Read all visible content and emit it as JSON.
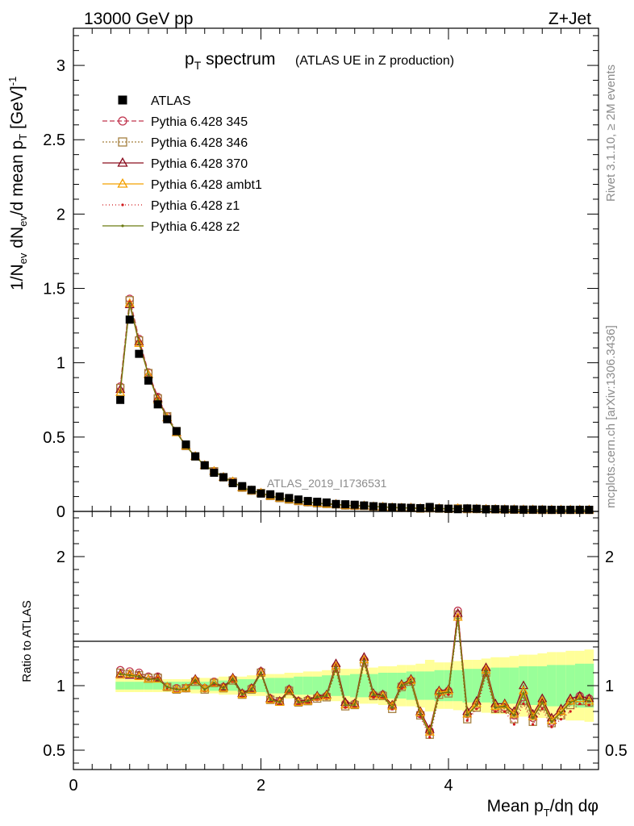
{
  "header": {
    "left": "13000 GeV pp",
    "right": "Z+Jet"
  },
  "side_text": {
    "rivet": "Rivet 3.1.10, ≥ 2M events",
    "mcplots": "mcplots.cern.ch [arXiv:1306.3436]"
  },
  "chart_data": [
    {
      "type": "scatter",
      "panel": "main",
      "title": "p_T spectrum",
      "title_main": "p",
      "title_sub": "T",
      "title_rest": " spectrum",
      "subtitle": "(ATLAS UE in Z production)",
      "watermark": "ATLAS_2019_I1736531",
      "ylabel": "1/N_ev dN_ev/d mean p_T [GeV]^-1",
      "ylabel_parts": {
        "a": "1/N",
        "b": "ev",
        "c": " dN",
        "d": "ev",
        "e": "/d mean p",
        "f": "T",
        "g": " [GeV]",
        "h": "-1"
      },
      "xlim": [
        0,
        5.6
      ],
      "ylim": [
        0,
        3.25
      ],
      "yticks": [
        "0",
        "0.5",
        "1",
        "1.5",
        "2",
        "2.5",
        "3"
      ],
      "ytick_values": [
        0,
        0.5,
        1,
        1.5,
        2,
        2.5,
        3
      ],
      "legend_position": "top-left",
      "x": [
        0.5,
        0.6,
        0.7,
        0.8,
        0.9,
        1.0,
        1.1,
        1.2,
        1.3,
        1.4,
        1.5,
        1.6,
        1.7,
        1.8,
        1.9,
        2.0,
        2.1,
        2.2,
        2.3,
        2.4,
        2.5,
        2.6,
        2.7,
        2.8,
        2.9,
        3.0,
        3.1,
        3.2,
        3.3,
        3.4,
        3.5,
        3.6,
        3.7,
        3.8,
        3.9,
        4.0,
        4.1,
        4.2,
        4.3,
        4.4,
        4.5,
        4.6,
        4.7,
        4.8,
        4.9,
        5.0,
        5.1,
        5.2,
        5.3,
        5.4,
        5.5
      ],
      "series": [
        {
          "name": "ATLAS",
          "color": "#000000",
          "marker": "square",
          "values": [
            0.75,
            1.29,
            1.06,
            0.88,
            0.72,
            0.62,
            0.54,
            0.45,
            0.37,
            0.31,
            0.26,
            0.23,
            0.19,
            0.17,
            0.145,
            0.12,
            0.115,
            0.1,
            0.09,
            0.08,
            0.07,
            0.065,
            0.06,
            0.05,
            0.048,
            0.045,
            0.04,
            0.035,
            0.03,
            0.028,
            0.026,
            0.024,
            0.022,
            0.03,
            0.02,
            0.018,
            0.015,
            0.02,
            0.018,
            0.014,
            0.015,
            0.014,
            0.013,
            0.012,
            0.012,
            0.012,
            0.011,
            0.011,
            0.011,
            0.011,
            0.011
          ]
        },
        {
          "name": "Pythia 6.428 345",
          "color": "#c0344e",
          "marker": "circle",
          "dash": "6,3",
          "values": [
            0.84,
            1.43,
            1.16,
            0.935,
            0.77,
            0.64,
            0.54,
            0.44,
            0.37,
            0.31,
            0.27,
            0.23,
            0.2,
            0.16,
            0.14,
            0.125,
            0.105,
            0.09,
            0.08,
            0.07,
            0.062,
            0.055,
            0.05,
            0.048,
            0.04,
            0.038,
            0.038,
            0.032,
            0.03,
            0.026,
            0.024,
            0.024,
            0.02,
            0.022,
            0.02,
            0.017,
            0.02,
            0.016,
            0.016,
            0.015,
            0.014,
            0.013,
            0.012,
            0.011,
            0.011,
            0.01,
            0.01,
            0.01,
            0.01,
            0.01,
            0.01
          ]
        },
        {
          "name": "Pythia 6.428 346",
          "color": "#a57f3f",
          "marker": "square-open",
          "dash": "2,2",
          "values": [
            0.83,
            1.42,
            1.15,
            0.93,
            0.76,
            0.64,
            0.54,
            0.44,
            0.37,
            0.31,
            0.27,
            0.23,
            0.2,
            0.16,
            0.14,
            0.124,
            0.104,
            0.09,
            0.08,
            0.07,
            0.062,
            0.055,
            0.05,
            0.047,
            0.04,
            0.038,
            0.037,
            0.032,
            0.03,
            0.025,
            0.024,
            0.023,
            0.019,
            0.021,
            0.019,
            0.017,
            0.02,
            0.016,
            0.016,
            0.015,
            0.014,
            0.013,
            0.012,
            0.011,
            0.011,
            0.01,
            0.01,
            0.01,
            0.01,
            0.01,
            0.01
          ]
        },
        {
          "name": "Pythia 6.428 370",
          "color": "#8b0d1f",
          "marker": "triangle-open",
          "dash": "",
          "values": [
            0.82,
            1.39,
            1.14,
            0.92,
            0.76,
            0.63,
            0.53,
            0.44,
            0.37,
            0.31,
            0.27,
            0.23,
            0.2,
            0.16,
            0.14,
            0.124,
            0.104,
            0.09,
            0.08,
            0.07,
            0.062,
            0.055,
            0.05,
            0.049,
            0.04,
            0.038,
            0.038,
            0.032,
            0.03,
            0.026,
            0.024,
            0.024,
            0.02,
            0.022,
            0.02,
            0.017,
            0.02,
            0.016,
            0.016,
            0.015,
            0.014,
            0.013,
            0.012,
            0.011,
            0.011,
            0.01,
            0.01,
            0.01,
            0.01,
            0.01,
            0.01
          ]
        },
        {
          "name": "Pythia 6.428 ambt1",
          "color": "#f4a000",
          "marker": "triangle-open",
          "dash": "",
          "values": [
            0.8,
            1.4,
            1.13,
            0.92,
            0.75,
            0.63,
            0.53,
            0.44,
            0.37,
            0.31,
            0.27,
            0.23,
            0.2,
            0.16,
            0.14,
            0.124,
            0.104,
            0.09,
            0.08,
            0.07,
            0.062,
            0.055,
            0.05,
            0.048,
            0.04,
            0.038,
            0.038,
            0.032,
            0.03,
            0.026,
            0.024,
            0.024,
            0.02,
            0.022,
            0.02,
            0.017,
            0.02,
            0.016,
            0.016,
            0.015,
            0.014,
            0.013,
            0.012,
            0.011,
            0.011,
            0.01,
            0.01,
            0.01,
            0.01,
            0.01,
            0.01
          ]
        },
        {
          "name": "Pythia 6.428 z1",
          "color": "#d0191c",
          "marker": "dot",
          "dash": "1,3",
          "values": [
            0.81,
            1.41,
            1.14,
            0.92,
            0.76,
            0.63,
            0.53,
            0.44,
            0.37,
            0.31,
            0.27,
            0.23,
            0.2,
            0.16,
            0.14,
            0.124,
            0.104,
            0.09,
            0.08,
            0.07,
            0.062,
            0.055,
            0.05,
            0.048,
            0.04,
            0.038,
            0.038,
            0.032,
            0.03,
            0.026,
            0.024,
            0.024,
            0.02,
            0.022,
            0.02,
            0.017,
            0.02,
            0.016,
            0.016,
            0.015,
            0.014,
            0.013,
            0.012,
            0.011,
            0.011,
            0.01,
            0.01,
            0.01,
            0.01,
            0.01,
            0.01
          ]
        },
        {
          "name": "Pythia 6.428 z2",
          "color": "#6b7a12",
          "marker": "dot",
          "dash": "",
          "values": [
            0.8,
            1.4,
            1.13,
            0.92,
            0.75,
            0.63,
            0.53,
            0.44,
            0.37,
            0.31,
            0.27,
            0.23,
            0.2,
            0.16,
            0.14,
            0.124,
            0.104,
            0.09,
            0.08,
            0.07,
            0.062,
            0.055,
            0.05,
            0.048,
            0.04,
            0.038,
            0.038,
            0.032,
            0.03,
            0.026,
            0.024,
            0.024,
            0.02,
            0.022,
            0.02,
            0.017,
            0.02,
            0.016,
            0.016,
            0.015,
            0.014,
            0.013,
            0.012,
            0.011,
            0.011,
            0.01,
            0.01,
            0.01,
            0.01,
            0.01,
            0.01
          ]
        }
      ]
    },
    {
      "type": "line",
      "panel": "ratio",
      "ylabel": "Ratio to ATLAS",
      "xlabel": "Mean p_T/dη dφ",
      "xlabel_parts": {
        "a": "Mean p",
        "b": "T",
        "c": "/dη dφ"
      },
      "xlim": [
        0,
        5.6
      ],
      "ylim": [
        0.35,
        2.35
      ],
      "xticks": [
        "0",
        "2",
        "4"
      ],
      "xtick_values": [
        0,
        2,
        4
      ],
      "yticks": [
        "0.5",
        "1",
        "2"
      ],
      "ytick_values": [
        0.5,
        1,
        2
      ],
      "band_inner_halfwidth": [
        0.03,
        0.03,
        0.03,
        0.03,
        0.03,
        0.03,
        0.03,
        0.03,
        0.03,
        0.03,
        0.04,
        0.04,
        0.04,
        0.05,
        0.05,
        0.05,
        0.06,
        0.06,
        0.06,
        0.07,
        0.07,
        0.07,
        0.08,
        0.08,
        0.08,
        0.09,
        0.09,
        0.09,
        0.1,
        0.1,
        0.1,
        0.11,
        0.11,
        0.11,
        0.12,
        0.12,
        0.12,
        0.13,
        0.13,
        0.13,
        0.14,
        0.14,
        0.14,
        0.15,
        0.15,
        0.15,
        0.16,
        0.16,
        0.16,
        0.17,
        0.17
      ],
      "band_outer_halfwidth": [
        0.05,
        0.05,
        0.05,
        0.05,
        0.05,
        0.05,
        0.05,
        0.05,
        0.06,
        0.06,
        0.06,
        0.07,
        0.07,
        0.07,
        0.08,
        0.08,
        0.09,
        0.09,
        0.1,
        0.1,
        0.11,
        0.11,
        0.12,
        0.12,
        0.13,
        0.13,
        0.14,
        0.14,
        0.15,
        0.15,
        0.16,
        0.16,
        0.17,
        0.2,
        0.18,
        0.18,
        0.19,
        0.2,
        0.2,
        0.21,
        0.22,
        0.22,
        0.23,
        0.24,
        0.24,
        0.25,
        0.26,
        0.26,
        0.27,
        0.27,
        0.28
      ],
      "ratios": [
        [
          1.12,
          1.11,
          1.1,
          1.07,
          1.07,
          0.99,
          0.98,
          0.98,
          1.04,
          0.98,
          1.03,
          0.99,
          1.05,
          0.94,
          0.98,
          1.11,
          0.9,
          0.88,
          0.97,
          0.88,
          0.89,
          0.91,
          0.92,
          1.15,
          0.86,
          0.86,
          1.2,
          0.93,
          0.93,
          0.84,
          1.0,
          1.04,
          0.78,
          0.65,
          0.95,
          0.96,
          1.58,
          0.78,
          0.85,
          1.12,
          0.83,
          0.83,
          0.77,
          0.91,
          0.75,
          0.86,
          0.72,
          0.8,
          0.88,
          0.92,
          0.9
        ],
        [
          1.1,
          1.09,
          1.08,
          1.06,
          1.06,
          0.99,
          0.97,
          0.98,
          1.03,
          0.97,
          1.02,
          0.98,
          1.04,
          0.93,
          0.97,
          1.1,
          0.89,
          0.88,
          0.96,
          0.87,
          0.88,
          0.9,
          0.91,
          1.13,
          0.84,
          0.85,
          1.18,
          0.92,
          0.92,
          0.82,
          0.99,
          1.03,
          0.77,
          0.62,
          0.93,
          0.94,
          1.55,
          0.74,
          0.83,
          1.1,
          0.82,
          0.82,
          0.74,
          0.88,
          0.72,
          0.84,
          0.71,
          0.77,
          0.85,
          0.88,
          0.87
        ],
        [
          1.09,
          1.08,
          1.08,
          1.05,
          1.06,
          0.99,
          0.97,
          0.98,
          1.05,
          0.98,
          1.02,
          0.99,
          1.06,
          0.94,
          0.98,
          1.11,
          0.9,
          0.88,
          0.97,
          0.88,
          0.89,
          0.92,
          0.93,
          1.17,
          0.87,
          0.86,
          1.22,
          0.94,
          0.93,
          0.85,
          1.01,
          1.05,
          0.8,
          0.66,
          0.96,
          0.97,
          1.56,
          0.8,
          0.88,
          1.14,
          0.86,
          0.86,
          0.8,
          1.0,
          0.78,
          0.9,
          0.75,
          0.82,
          0.9,
          0.92,
          0.9
        ],
        [
          1.08,
          1.09,
          1.07,
          1.05,
          1.05,
          0.99,
          0.97,
          0.98,
          1.04,
          0.98,
          1.02,
          0.98,
          1.05,
          0.93,
          0.97,
          1.1,
          0.89,
          0.87,
          0.96,
          0.87,
          0.88,
          0.91,
          0.92,
          1.15,
          0.85,
          0.85,
          1.2,
          0.93,
          0.92,
          0.84,
          1.0,
          1.04,
          0.79,
          0.64,
          0.95,
          0.96,
          1.53,
          0.78,
          0.86,
          1.12,
          0.84,
          0.85,
          0.78,
          0.96,
          0.76,
          0.88,
          0.73,
          0.8,
          0.88,
          0.9,
          0.88
        ],
        [
          1.09,
          1.08,
          1.07,
          1.05,
          1.06,
          0.98,
          0.97,
          0.97,
          1.03,
          0.97,
          1.01,
          0.98,
          1.04,
          0.92,
          0.97,
          1.09,
          0.88,
          0.86,
          0.95,
          0.86,
          0.87,
          0.9,
          0.91,
          1.12,
          0.83,
          0.84,
          1.17,
          0.91,
          0.91,
          0.82,
          0.98,
          1.02,
          0.76,
          0.6,
          0.92,
          0.93,
          1.5,
          0.73,
          0.82,
          1.08,
          0.8,
          0.8,
          0.7,
          0.86,
          0.7,
          0.82,
          0.68,
          0.74,
          0.8,
          0.86,
          0.85
        ],
        [
          1.09,
          1.08,
          1.07,
          1.05,
          1.05,
          0.99,
          0.97,
          0.97,
          1.04,
          0.97,
          1.02,
          0.98,
          1.05,
          0.93,
          0.97,
          1.1,
          0.89,
          0.87,
          0.96,
          0.87,
          0.88,
          0.91,
          0.92,
          1.14,
          0.85,
          0.85,
          1.19,
          0.93,
          0.92,
          0.83,
          1.0,
          1.03,
          0.78,
          0.63,
          0.94,
          0.95,
          1.52,
          0.77,
          0.85,
          1.11,
          0.83,
          0.84,
          0.77,
          0.94,
          0.75,
          0.87,
          0.72,
          0.79,
          0.87,
          0.9,
          0.88
        ]
      ]
    }
  ]
}
